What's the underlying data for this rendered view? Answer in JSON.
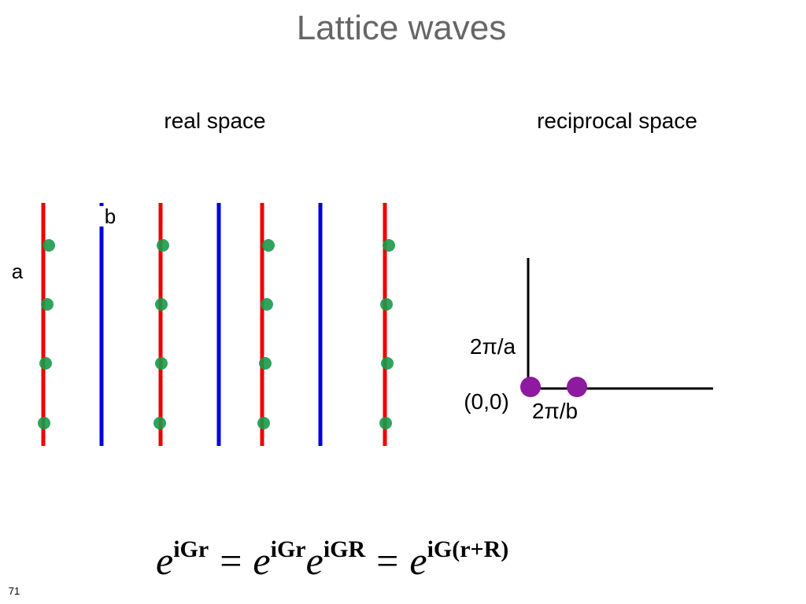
{
  "title": "Lattice waves",
  "real_space": {
    "label": "real space",
    "label_a": "a",
    "label_b": "b"
  },
  "reciprocal_space": {
    "label": "reciprocal space",
    "label_origin": "(0,0)",
    "label_a": "2π/a",
    "label_b": "2π/b"
  },
  "equation": {
    "terms": [
      {
        "base": "e",
        "exp": "iGr"
      },
      {
        "base": "e",
        "exp": "iGr"
      },
      {
        "base": "e",
        "exp": "iGR"
      },
      {
        "base": "e",
        "exp": "iG(r+R)"
      }
    ],
    "operator": "="
  },
  "page_number": "71"
}
